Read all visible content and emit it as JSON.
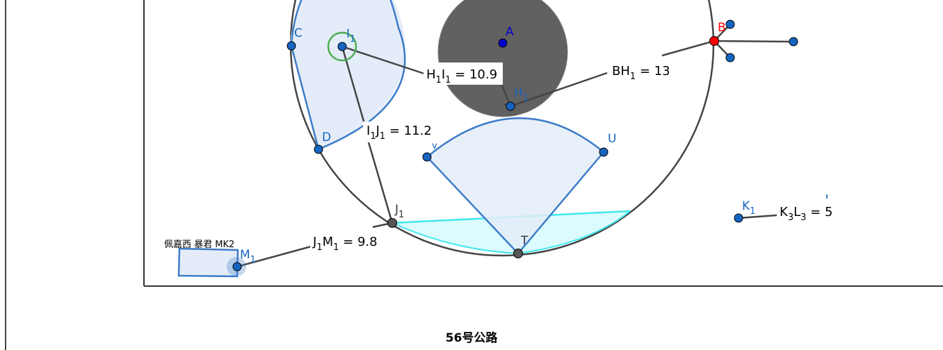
{
  "footer_title": "56号公路",
  "rect_caption": "佩嘉西 暴君 MK2",
  "colors": {
    "blue_stroke": "#3d7cc9",
    "blue_fill": "#e3ecf8",
    "dark_disk": "#616161",
    "cyan": "#3ee8ef",
    "cyan_fill": "#dcfbfd",
    "point_blue": "#1565c0",
    "point_red": "#ff0000",
    "point_gray": "#555555",
    "green_ring": "#4caf50"
  },
  "points": {
    "A": {
      "label": "A"
    },
    "B": {
      "label": "B"
    },
    "C": {
      "label": "C"
    },
    "D": {
      "label": "D"
    },
    "T": {
      "label": "T"
    },
    "U": {
      "label": "U"
    },
    "V": {
      "label": "v"
    },
    "I1": {
      "label": "I",
      "sub": "1"
    },
    "H1": {
      "label": "H",
      "sub": "1"
    },
    "J1": {
      "label": "J",
      "sub": "1"
    },
    "K1": {
      "label": "K",
      "sub": "1"
    },
    "M1": {
      "label": "M",
      "sub": "1"
    }
  },
  "measurements": {
    "H1I1": {
      "a": "H",
      "as": "1",
      "b": "I",
      "bs": "1",
      "value": "10.9"
    },
    "BH1": {
      "a": "BH",
      "as": "1",
      "b": "",
      "bs": "",
      "value": "13"
    },
    "I1J1": {
      "a": "I",
      "as": "1",
      "b": "J",
      "bs": "1",
      "value": "11.2"
    },
    "J1M1": {
      "a": "J",
      "as": "1",
      "b": "M",
      "bs": "1",
      "value": "9.8"
    },
    "K3L3": {
      "a": "K",
      "as": "3",
      "b": "L",
      "bs": "3",
      "value": "5"
    }
  }
}
